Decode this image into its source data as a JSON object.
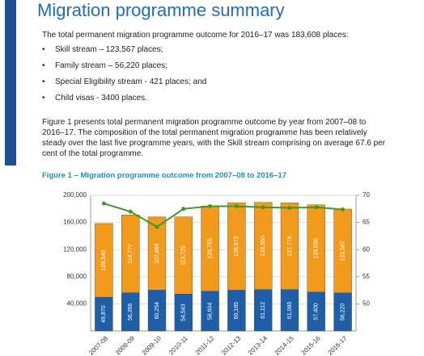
{
  "title": "Migration programme summary",
  "intro": "The total permanent migration programme outcome for 2016–17 was 183,608 places:",
  "bullets": [
    "Skill stream – 123,567 places;",
    "Family stream – 56,220 places;",
    "Special Eligibility stream - 421 places; and",
    "Child visas - 3400 places."
  ],
  "paragraph": "Figure 1 presents total permanent migration programme outcome by year from 2007–08 to 2016–17. The composition of the total permanent migration programme has been relatively steady over the last five programme years, with the Skill stream comprising on average 67.6 per cent of the total programme.",
  "chart_data": {
    "type": "bar",
    "title": "Figure 1 – Migration programme outcome from 2007–08 to 2016–17",
    "stacked": true,
    "categories": [
      "2007-08",
      "2008-09",
      "2009-10",
      "2010-11",
      "2011-12",
      "2012-13",
      "2013-14",
      "2014-15",
      "2015-16",
      "2016-17"
    ],
    "series": [
      {
        "color": "#1f5fa8",
        "values": [
          49870,
          56366,
          60254,
          54543,
          58604,
          60185,
          61112,
          61085,
          57400,
          56220
        ],
        "value_labels": [
          "49,870",
          "56,366",
          "60,254",
          "54,543",
          "58,604",
          "60,185",
          "61,112",
          "61,085",
          "57,400",
          "56,220"
        ]
      },
      {
        "color": "#f29a1c",
        "values": [
          108540,
          114777,
          107868,
          113725,
          125755,
          128973,
          128550,
          127774,
          128550,
          123567
        ],
        "value_labels": [
          "108,540",
          "114,777",
          "107,868",
          "113,725",
          "125,755",
          "128,973",
          "128,550",
          "127,774",
          "128,550",
          "123,567"
        ]
      },
      {
        "type": "line",
        "axis": "y2",
        "color": "#3a9a2a",
        "values": [
          68.5,
          67,
          64.2,
          67.5,
          68,
          68,
          67.8,
          67.7,
          67.8,
          67.4
        ]
      }
    ],
    "ylim": [
      0,
      200000
    ],
    "yticks": [
      {
        "value": 40000,
        "label": "40,000"
      },
      {
        "value": 80000,
        "label": "80,000"
      },
      {
        "value": 120000,
        "label": "120,000"
      },
      {
        "value": 160000,
        "label": "160,000"
      },
      {
        "value": 200000,
        "label": "200,000"
      }
    ],
    "y2lim": [
      45,
      70
    ],
    "y2ticks": [
      50,
      55,
      60,
      65,
      70
    ],
    "grid": true
  }
}
